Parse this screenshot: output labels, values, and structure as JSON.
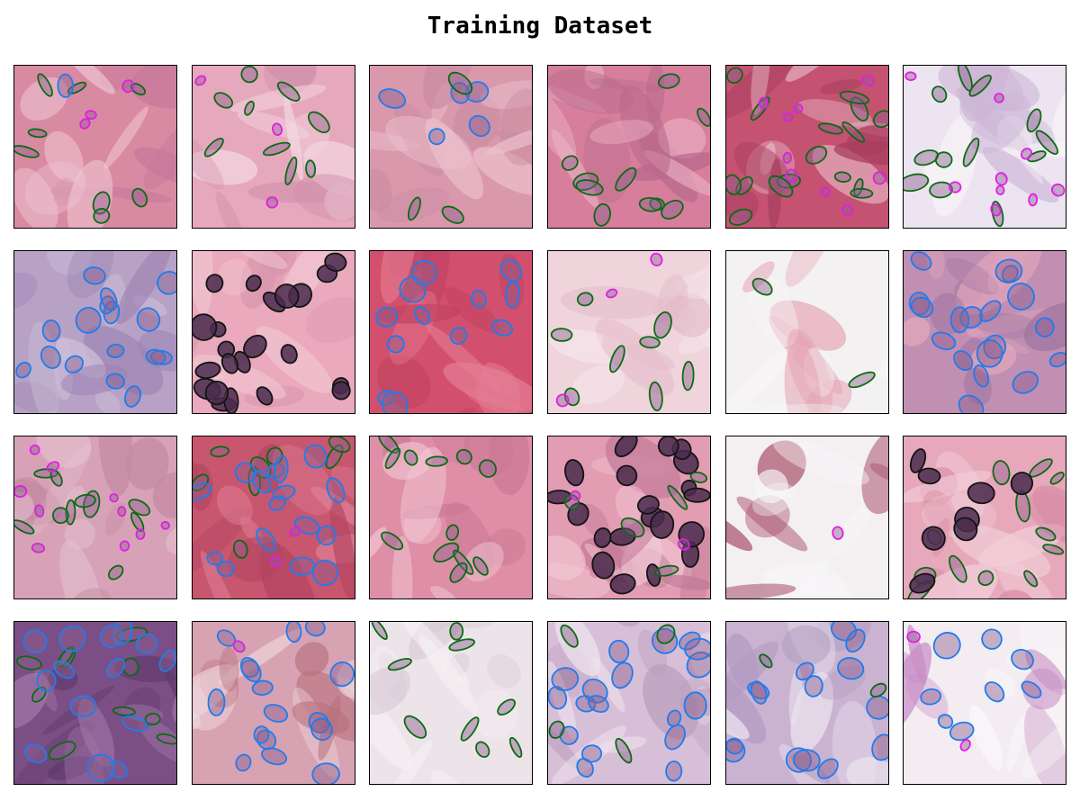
{
  "figure": {
    "title": "Training Dataset"
  },
  "grid": {
    "rows": 4,
    "cols": 6
  },
  "colors": {
    "green-outline": "#0b6b12",
    "blue-outline": "#1e7cf0",
    "magenta-outline": "#e21de6",
    "black-outline": "#141414"
  },
  "tiles": [
    {
      "bg": [
        "#d98aa3",
        "#c7789a",
        "#f0c9d6"
      ],
      "nuclei": [
        [
          "g",
          8
        ],
        [
          "m",
          3
        ],
        [
          "b",
          1
        ]
      ]
    },
    {
      "bg": [
        "#e6a8bd",
        "#f3d6df",
        "#d292ab"
      ],
      "nuclei": [
        [
          "g",
          9
        ],
        [
          "m",
          3
        ]
      ]
    },
    {
      "bg": [
        "#d998ac",
        "#ebc0cd",
        "#c98aa0"
      ],
      "nuclei": [
        [
          "b",
          5
        ],
        [
          "g",
          3
        ]
      ]
    },
    {
      "bg": [
        "#d67e9b",
        "#e9aec1",
        "#b9698c"
      ],
      "nuclei": [
        [
          "g",
          10
        ]
      ]
    },
    {
      "bg": [
        "#c45270",
        "#e7b5c6",
        "#a73e60"
      ],
      "nuclei": [
        [
          "g",
          16
        ],
        [
          "m",
          9
        ]
      ]
    },
    {
      "bg": [
        "#ece4f0",
        "#cdb6d6",
        "#f7f3f6"
      ],
      "nuclei": [
        [
          "g",
          12
        ],
        [
          "m",
          9
        ]
      ]
    },
    {
      "bg": [
        "#b7a2c6",
        "#9c83b3",
        "#cdbcd7"
      ],
      "nuclei": [
        [
          "b",
          16
        ]
      ]
    },
    {
      "bg": [
        "#eaa9bd",
        "#f2c7d4",
        "#d895ab"
      ],
      "nuclei": [
        [
          "k",
          22
        ]
      ]
    },
    {
      "bg": [
        "#d2506d",
        "#e57c93",
        "#c0405f"
      ],
      "nuclei": [
        [
          "b",
          12
        ]
      ]
    },
    {
      "bg": [
        "#efd4dc",
        "#e4bdca",
        "#f6e6ec"
      ],
      "nuclei": [
        [
          "g",
          8
        ],
        [
          "m",
          3
        ]
      ]
    },
    {
      "bg": [
        "#f4f1f2",
        "#e4a3b6",
        "#f8f6f7"
      ],
      "nuclei": [
        [
          "g",
          2
        ]
      ]
    },
    {
      "bg": [
        "#c08fb2",
        "#9f74a0",
        "#e4a8bc"
      ],
      "nuclei": [
        [
          "b",
          18
        ]
      ]
    },
    {
      "bg": [
        "#d7a2b8",
        "#e5c2cf",
        "#c48aa2"
      ],
      "nuclei": [
        [
          "g",
          10
        ],
        [
          "m",
          10
        ]
      ]
    },
    {
      "bg": [
        "#c9566f",
        "#dd7f95",
        "#b34460"
      ],
      "nuclei": [
        [
          "g",
          8
        ],
        [
          "b",
          16
        ],
        [
          "m",
          2
        ]
      ]
    },
    {
      "bg": [
        "#de8ea6",
        "#f0c4d1",
        "#cb7896"
      ],
      "nuclei": [
        [
          "g",
          12
        ]
      ]
    },
    {
      "bg": [
        "#e39db2",
        "#c27a98",
        "#f1c9d5"
      ],
      "nuclei": [
        [
          "k",
          20
        ],
        [
          "g",
          5
        ],
        [
          "m",
          2
        ]
      ]
    },
    {
      "bg": [
        "#f4f0f2",
        "#a8506b",
        "#f8f6f7"
      ],
      "nuclei": [
        [
          "m",
          1
        ]
      ]
    },
    {
      "bg": [
        "#e7a8bb",
        "#d88da5",
        "#f3cfda"
      ],
      "nuclei": [
        [
          "g",
          12
        ],
        [
          "k",
          8
        ]
      ]
    },
    {
      "bg": [
        "#7c4e86",
        "#a27aa9",
        "#5e3a6b"
      ],
      "nuclei": [
        [
          "g",
          10
        ],
        [
          "b",
          14
        ]
      ]
    },
    {
      "bg": [
        "#d7a3b3",
        "#b8707d",
        "#f0d8de"
      ],
      "nuclei": [
        [
          "b",
          16
        ],
        [
          "m",
          1
        ]
      ]
    },
    {
      "bg": [
        "#ede4ea",
        "#d9c9d4",
        "#f6f0f3"
      ],
      "nuclei": [
        [
          "g",
          9
        ]
      ]
    },
    {
      "bg": [
        "#d8bfd8",
        "#b99dbc",
        "#efe6ef"
      ],
      "nuclei": [
        [
          "b",
          18
        ],
        [
          "g",
          4
        ]
      ]
    },
    {
      "bg": [
        "#c9b3d1",
        "#b39bc1",
        "#ece4ef"
      ],
      "nuclei": [
        [
          "b",
          14
        ],
        [
          "g",
          2
        ]
      ]
    },
    {
      "bg": [
        "#f3edf2",
        "#c88fc6",
        "#f9f6f8"
      ],
      "nuclei": [
        [
          "b",
          8
        ],
        [
          "m",
          2
        ]
      ]
    }
  ]
}
